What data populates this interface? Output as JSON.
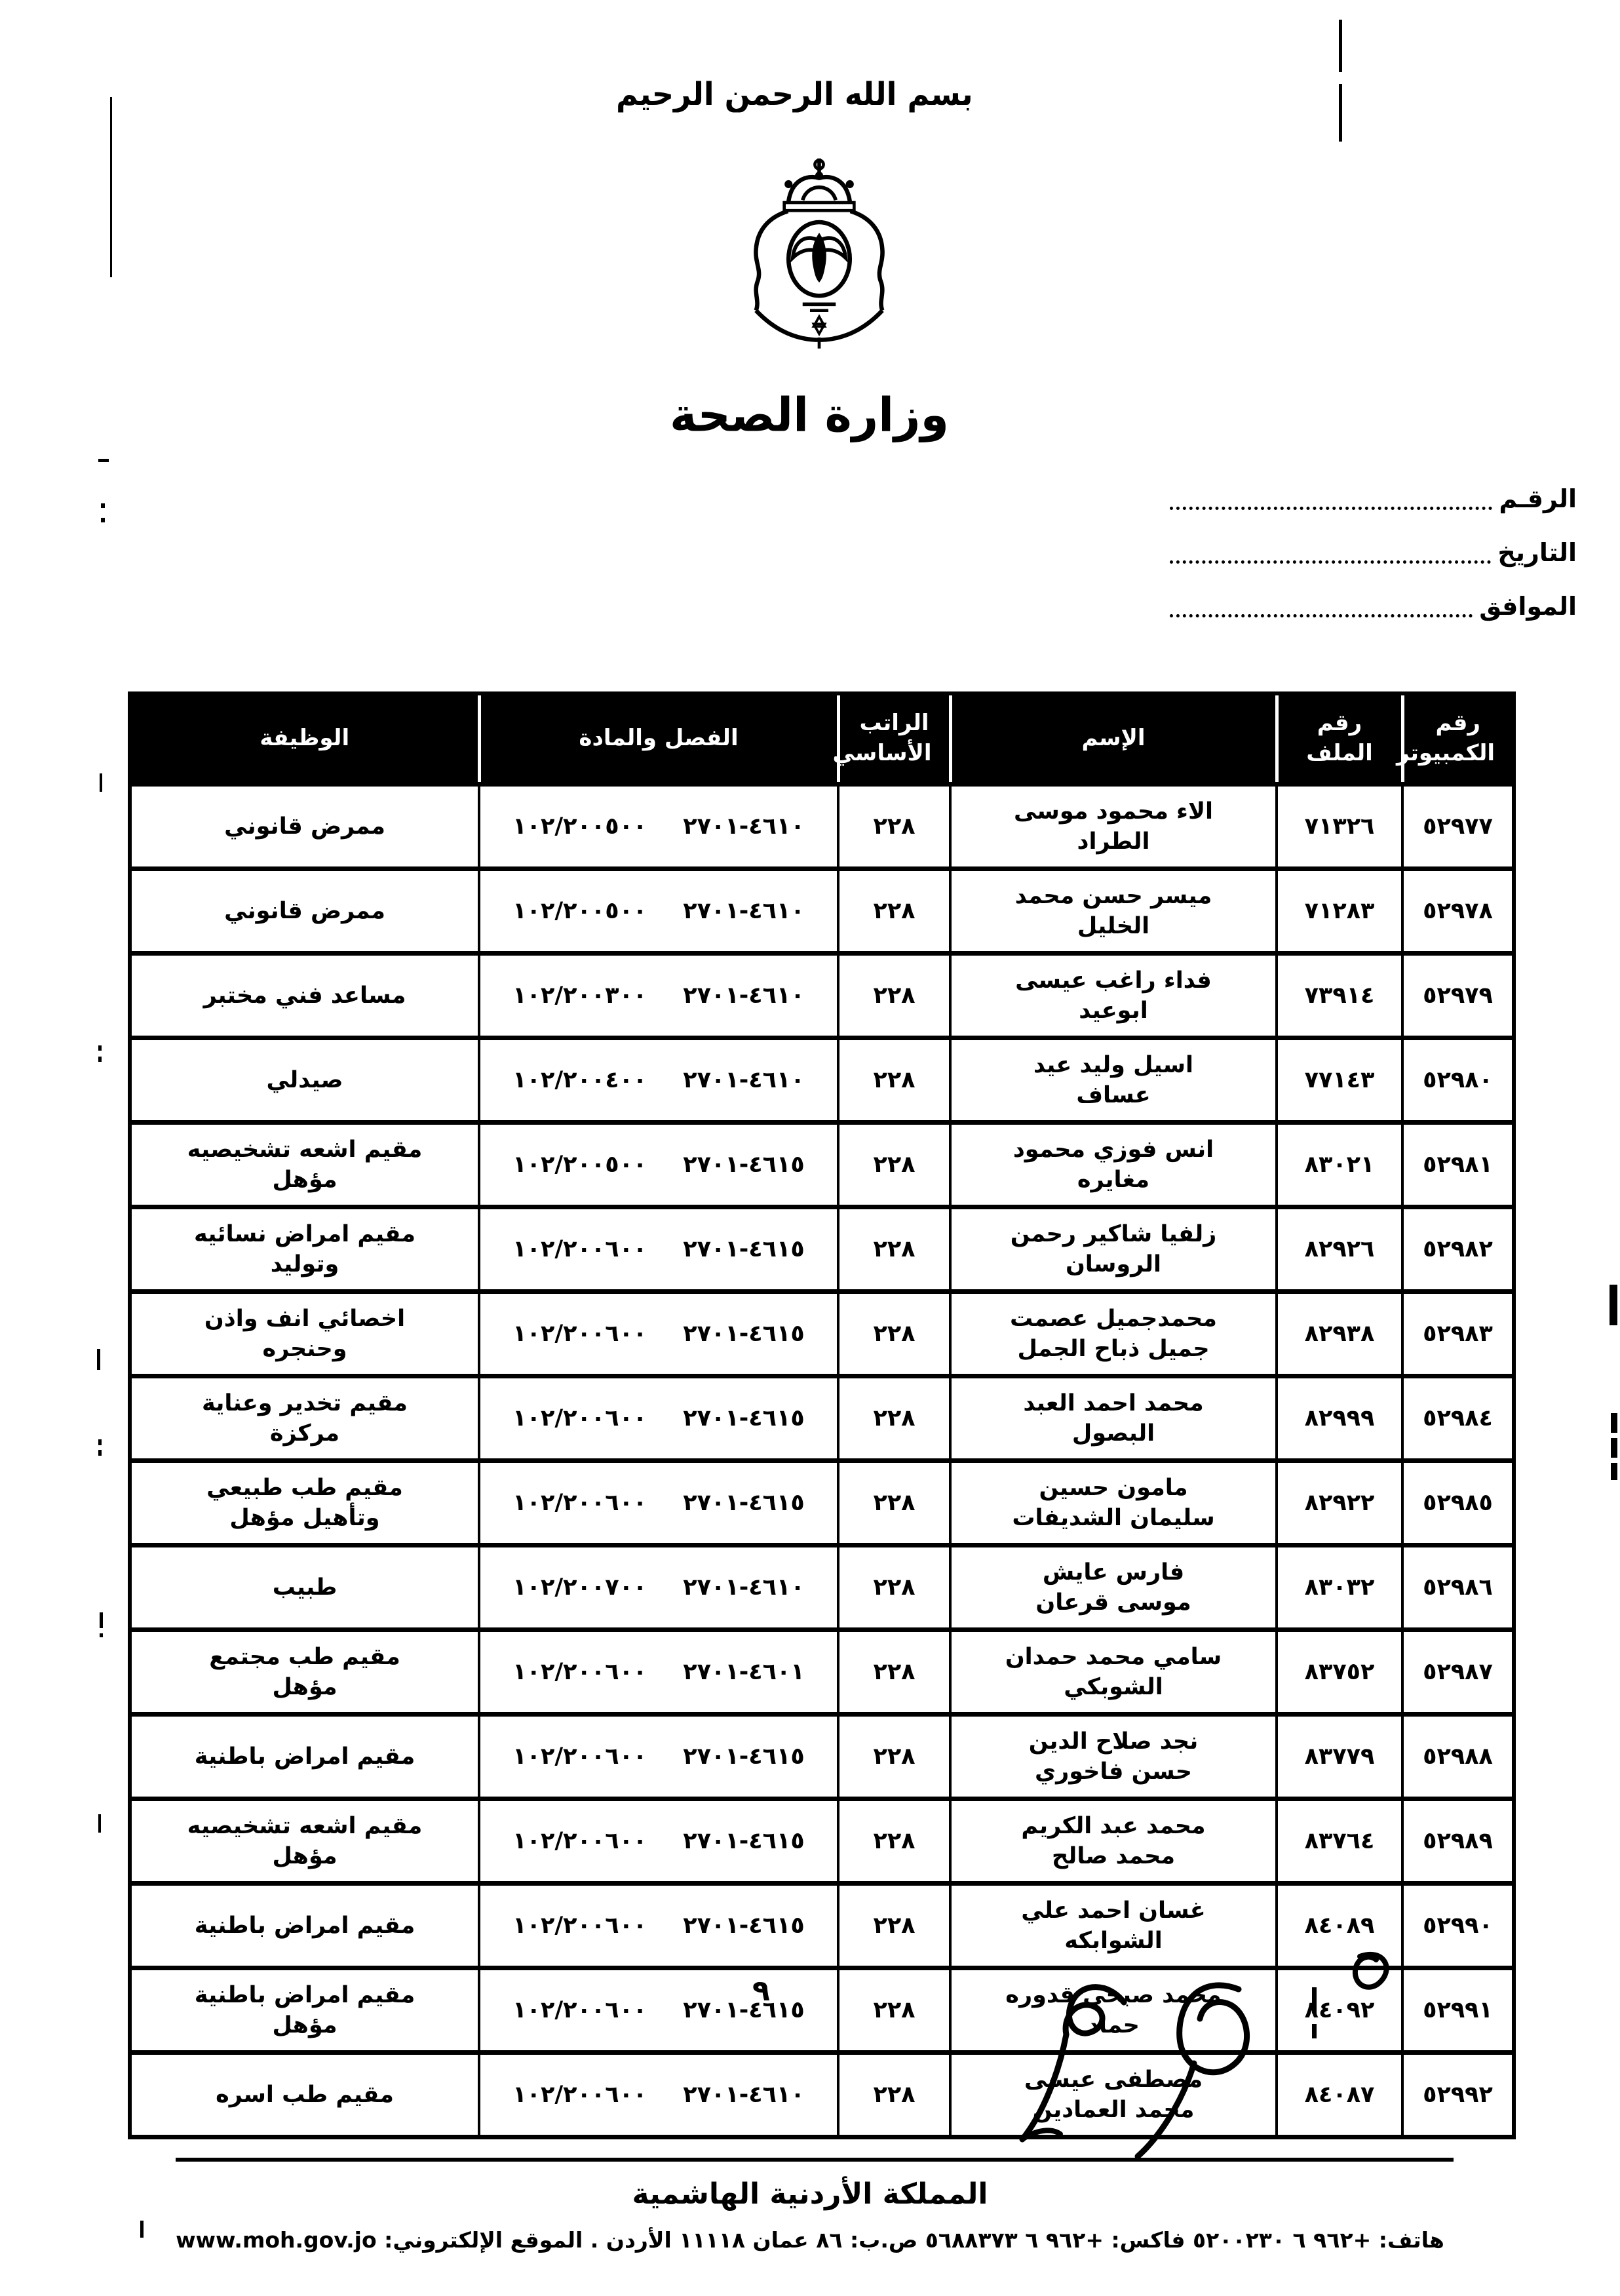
{
  "document": {
    "bismillah": "بسم الله الرحمن الرحيم",
    "ministry_title": "وزارة الصحة",
    "page_number": "٩",
    "kingdom_name": "المملكة الأردنية الهاشمية",
    "contact_line": "هاتف: +٩٦٢ ٦ ٥٢٠٠٢٣٠   فاكس: +٩٦٢ ٦ ٥٦٨٨٣٧٣   ص.ب: ٨٦ عمان ١١١١٨ الأردن . الموقع الإلكتروني: www.moh.gov.jo"
  },
  "ref_fields": {
    "number_label": "الرقـم",
    "date_label": "التاريخ",
    "agreed_label": "الموافق"
  },
  "table": {
    "columns": [
      {
        "label": "رقم الكمبيوتر"
      },
      {
        "label": "رقم الملف"
      },
      {
        "label": "الإسم"
      },
      {
        "label": "الراتب الأساسي"
      },
      {
        "label": "الفصل والمادة"
      },
      {
        "label": "الوظيفة"
      }
    ],
    "rows": [
      {
        "computer_no": "٥٢٩٧٧",
        "file_no": "٧١٣٢٦",
        "name": "الاء محمود موسى الطراد",
        "salary": "٢٢٨",
        "chapter": "١٠٢/٢٠٠٥٠٠",
        "group": "٤٦١٠-٢٧٠١",
        "job": "ممرض قانوني"
      },
      {
        "computer_no": "٥٢٩٧٨",
        "file_no": "٧١٢٨٣",
        "name": "ميسر حسن محمد الخليل",
        "salary": "٢٢٨",
        "chapter": "١٠٢/٢٠٠٥٠٠",
        "group": "٤٦١٠-٢٧٠١",
        "job": "ممرض قانوني"
      },
      {
        "computer_no": "٥٢٩٧٩",
        "file_no": "٧٣٩١٤",
        "name": "فداء راغب عيسى ابوعيد",
        "salary": "٢٢٨",
        "chapter": "١٠٢/٢٠٠٣٠٠",
        "group": "٤٦١٠-٢٧٠١",
        "job": "مساعد فني مختبر"
      },
      {
        "computer_no": "٥٢٩٨٠",
        "file_no": "٧٧١٤٣",
        "name": "اسيل وليد عيد عساف",
        "salary": "٢٢٨",
        "chapter": "١٠٢/٢٠٠٤٠٠",
        "group": "٤٦١٠-٢٧٠١",
        "job": "صيدلي"
      },
      {
        "computer_no": "٥٢٩٨١",
        "file_no": "٨٣٠٢١",
        "name": "انس فوزي محمود مغايره",
        "salary": "٢٢٨",
        "chapter": "١٠٢/٢٠٠٥٠٠",
        "group": "٤٦١٥-٢٧٠١",
        "job": "مقيم اشعه تشخيصيه مؤهل"
      },
      {
        "computer_no": "٥٢٩٨٢",
        "file_no": "٨٢٩٢٦",
        "name": "زلفيا شاكير رحمن الروسان",
        "salary": "٢٢٨",
        "chapter": "١٠٢/٢٠٠٦٠٠",
        "group": "٤٦١٥-٢٧٠١",
        "job": "مقيم امراض نسائيه وتوليد"
      },
      {
        "computer_no": "٥٢٩٨٣",
        "file_no": "٨٢٩٣٨",
        "name": "محمدجميل عصمت جميل ذباح الجمل",
        "salary": "٢٢٨",
        "chapter": "١٠٢/٢٠٠٦٠٠",
        "group": "٤٦١٥-٢٧٠١",
        "job": "اخصائي انف واذن وحنجره"
      },
      {
        "computer_no": "٥٢٩٨٤",
        "file_no": "٨٢٩٩٩",
        "name": "محمد احمد العبد البصول",
        "salary": "٢٢٨",
        "chapter": "١٠٢/٢٠٠٦٠٠",
        "group": "٤٦١٥-٢٧٠١",
        "job": "مقيم تخدير وعناية مركزة"
      },
      {
        "computer_no": "٥٢٩٨٥",
        "file_no": "٨٢٩٢٢",
        "name": "مامون حسين سليمان الشديفات",
        "salary": "٢٢٨",
        "chapter": "١٠٢/٢٠٠٦٠٠",
        "group": "٤٦١٥-٢٧٠١",
        "job": "مقيم طب طبيعي وتأهيل مؤهل"
      },
      {
        "computer_no": "٥٢٩٨٦",
        "file_no": "٨٣٠٣٢",
        "name": "فارس عايش موسى قرعان",
        "salary": "٢٢٨",
        "chapter": "١٠٢/٢٠٠٧٠٠",
        "group": "٤٦١٠-٢٧٠١",
        "job": "طبيب"
      },
      {
        "computer_no": "٥٢٩٨٧",
        "file_no": "٨٣٧٥٢",
        "name": "سامي محمد حمدان الشوبكي",
        "salary": "٢٢٨",
        "chapter": "١٠٢/٢٠٠٦٠٠",
        "group": "٤٦٠١-٢٧٠١",
        "job": "مقيم طب مجتمع مؤهل"
      },
      {
        "computer_no": "٥٢٩٨٨",
        "file_no": "٨٣٧٧٩",
        "name": "نجد صلاح الدين حسن فاخوري",
        "salary": "٢٢٨",
        "chapter": "١٠٢/٢٠٠٦٠٠",
        "group": "٤٦١٥-٢٧٠١",
        "job": "مقيم امراض باطنية"
      },
      {
        "computer_no": "٥٢٩٨٩",
        "file_no": "٨٣٧٦٤",
        "name": "محمد عبد الكريم محمد صالح",
        "salary": "٢٢٨",
        "chapter": "١٠٢/٢٠٠٦٠٠",
        "group": "٤٦١٥-٢٧٠١",
        "job": "مقيم اشعه تشخيصيه مؤهل"
      },
      {
        "computer_no": "٥٢٩٩٠",
        "file_no": "٨٤٠٨٩",
        "name": "غسان احمد علي الشوابكه",
        "salary": "٢٢٨",
        "chapter": "١٠٢/٢٠٠٦٠٠",
        "group": "٤٦١٥-٢٧٠١",
        "job": "مقيم امراض باطنية"
      },
      {
        "computer_no": "٥٢٩٩١",
        "file_no": "٨٤٠٩٢",
        "name": "محمد صبحي قدوره حماد",
        "salary": "٢٢٨",
        "chapter": "١٠٢/٢٠٠٦٠٠",
        "group": "٤٦١٥-٢٧٠١",
        "job": "مقيم امراض باطنية مؤهل"
      },
      {
        "computer_no": "٥٢٩٩٢",
        "file_no": "٨٤٠٨٧",
        "name": "مصطفى عيسى محمد العمادين",
        "salary": "٢٢٨",
        "chapter": "١٠٢/٢٠٠٦٠٠",
        "group": "٤٦١٠-٢٧٠١",
        "job": "مقيم طب اسره"
      }
    ]
  }
}
